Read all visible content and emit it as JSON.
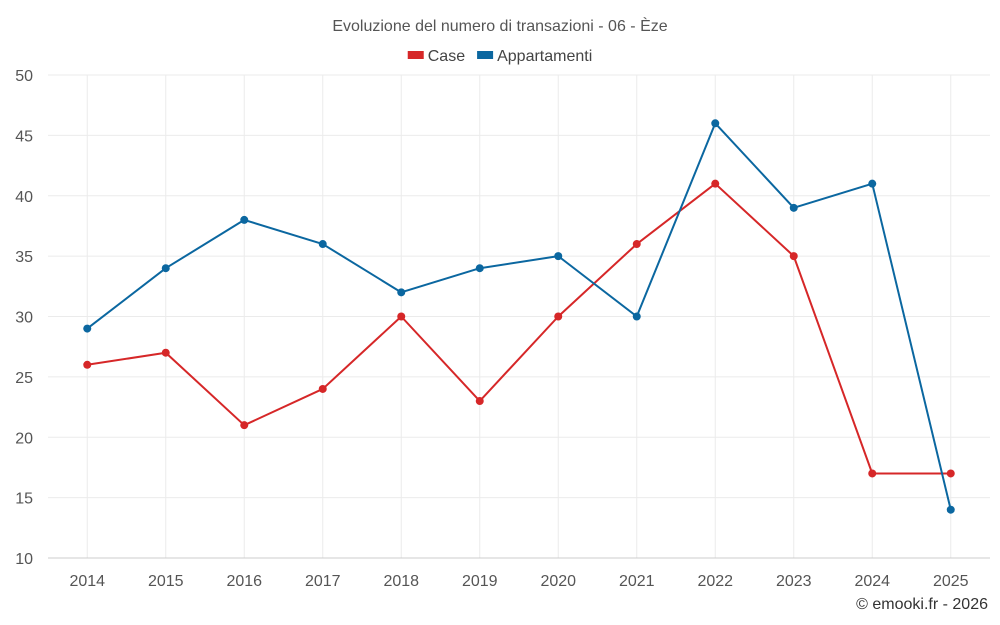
{
  "chart_data": {
    "type": "line",
    "title": "Evoluzione del numero di transazioni - 06 - Èze",
    "xlabel": "",
    "ylabel": "",
    "categories": [
      "2014",
      "2015",
      "2016",
      "2017",
      "2018",
      "2019",
      "2020",
      "2021",
      "2022",
      "2023",
      "2024",
      "2025"
    ],
    "ylim": [
      10,
      50
    ],
    "yticks": [
      10,
      15,
      20,
      25,
      30,
      35,
      40,
      45,
      50
    ],
    "grid": true,
    "legend_position": "top-center",
    "series": [
      {
        "name": "Case",
        "color": "#d62728",
        "values": [
          26,
          27,
          21,
          24,
          30,
          23,
          30,
          36,
          41,
          35,
          17,
          17
        ]
      },
      {
        "name": "Appartamenti",
        "color": "#0b67a0",
        "values": [
          29,
          34,
          38,
          36,
          32,
          34,
          35,
          30,
          46,
          39,
          41,
          14
        ]
      }
    ]
  },
  "credit": "© emooki.fr - 2026"
}
